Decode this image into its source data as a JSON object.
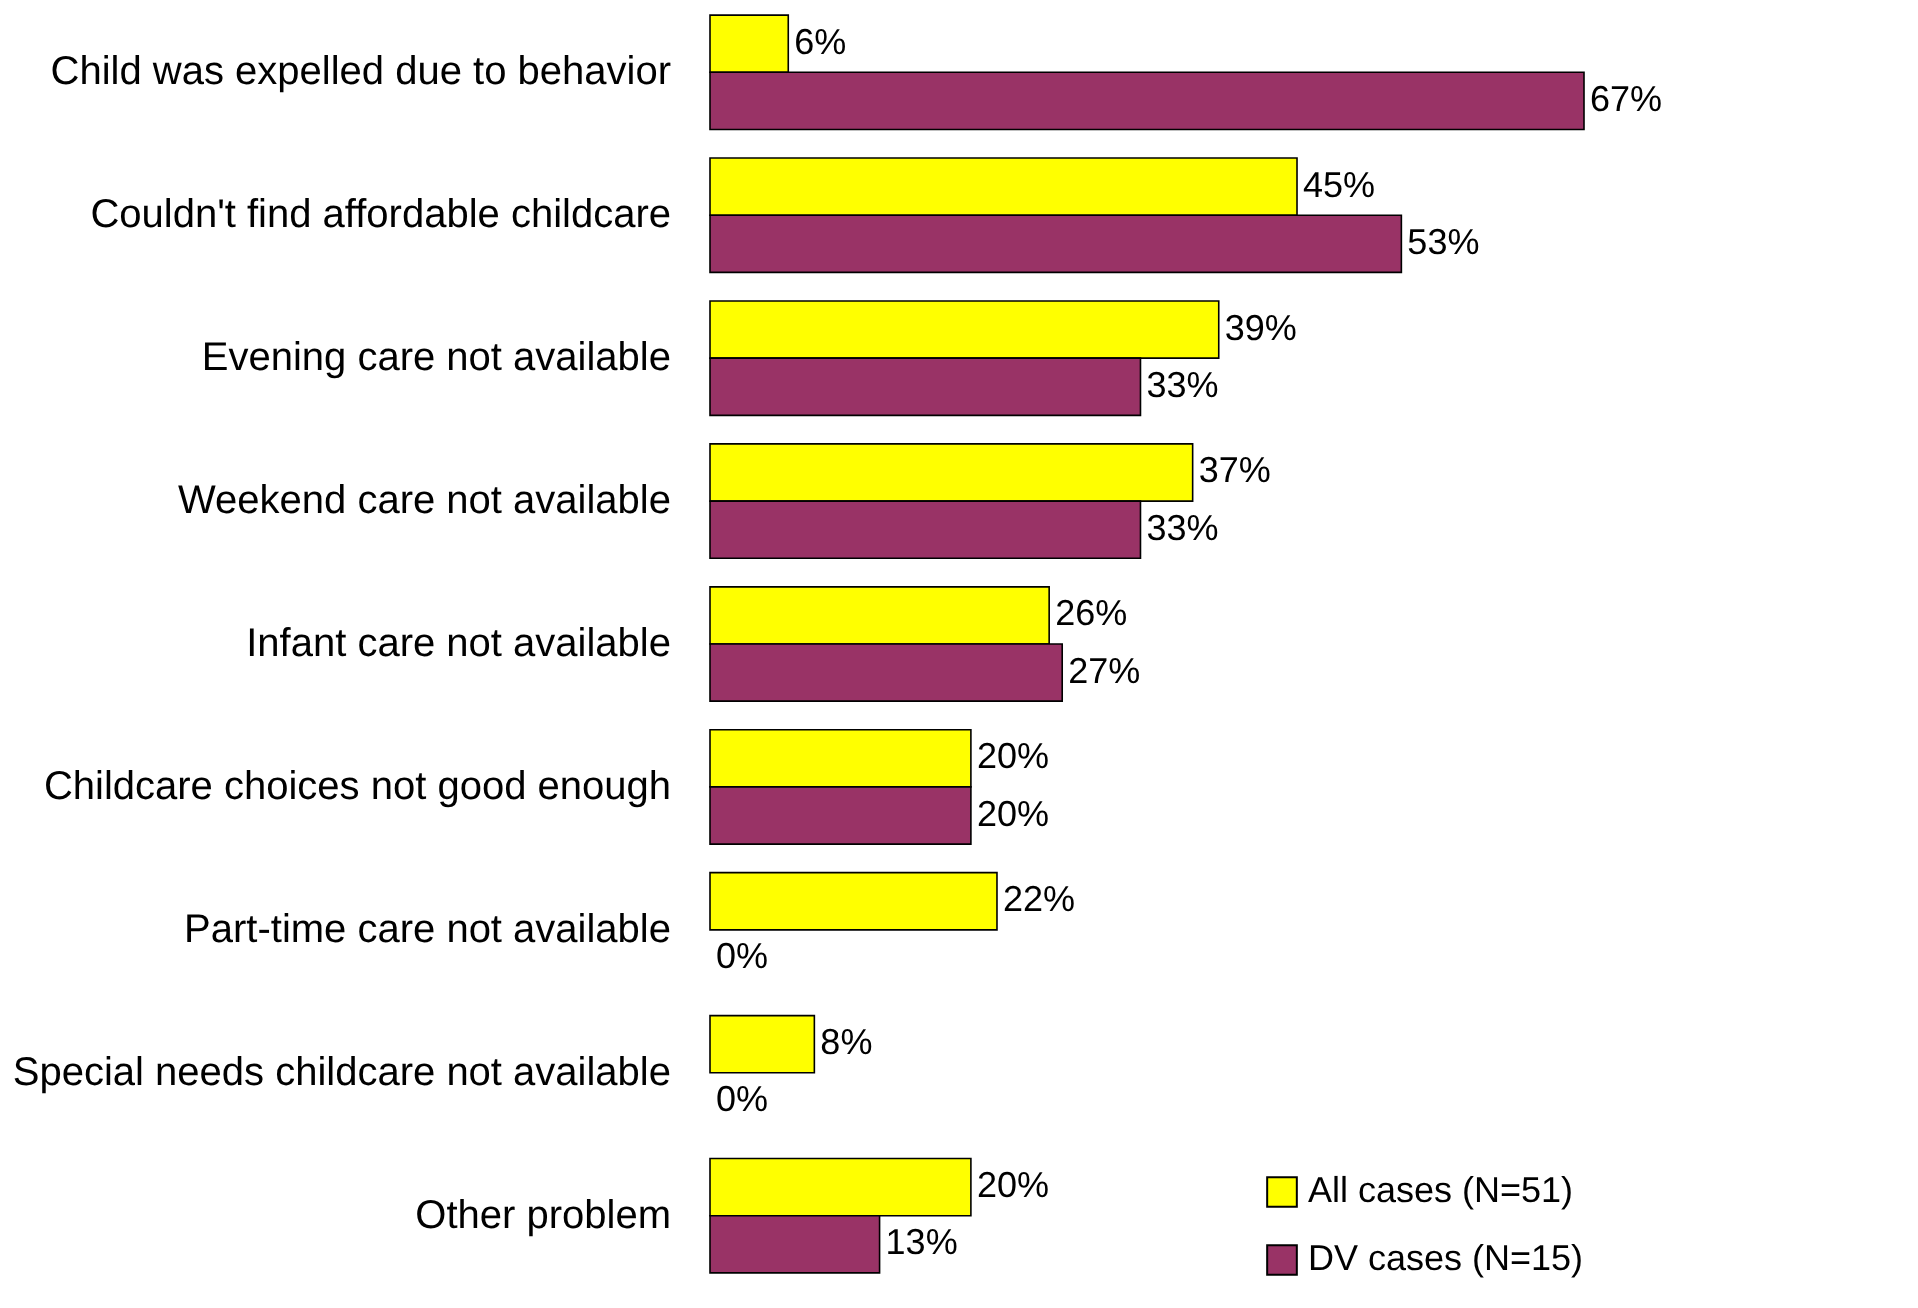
{
  "chart_data": {
    "type": "bar",
    "orientation": "horizontal",
    "categories": [
      "Child was expelled due to behavior",
      "Couldn't find affordable childcare",
      "Evening care not available",
      "Weekend care not available",
      "Infant care not available",
      "Childcare choices not good enough",
      "Part-time care not available",
      "Special needs childcare not available",
      "Other problem"
    ],
    "series": [
      {
        "name": "All cases (N=51)",
        "color": "#ffff00",
        "values": [
          6,
          45,
          39,
          37,
          26,
          20,
          22,
          8,
          20
        ],
        "value_labels": [
          "6%",
          "45%",
          "39%",
          "37%",
          "26%",
          "20%",
          "22%",
          "8%",
          "20%"
        ]
      },
      {
        "name": "DV cases (N=15)",
        "color": "#993366",
        "values": [
          67,
          53,
          33,
          33,
          27,
          20,
          0,
          0,
          13
        ],
        "value_labels": [
          "67%",
          "53%",
          "33%",
          "33%",
          "27%",
          "20%",
          "0%",
          "0%",
          "13%"
        ]
      }
    ],
    "legend": "bottom right"
  }
}
